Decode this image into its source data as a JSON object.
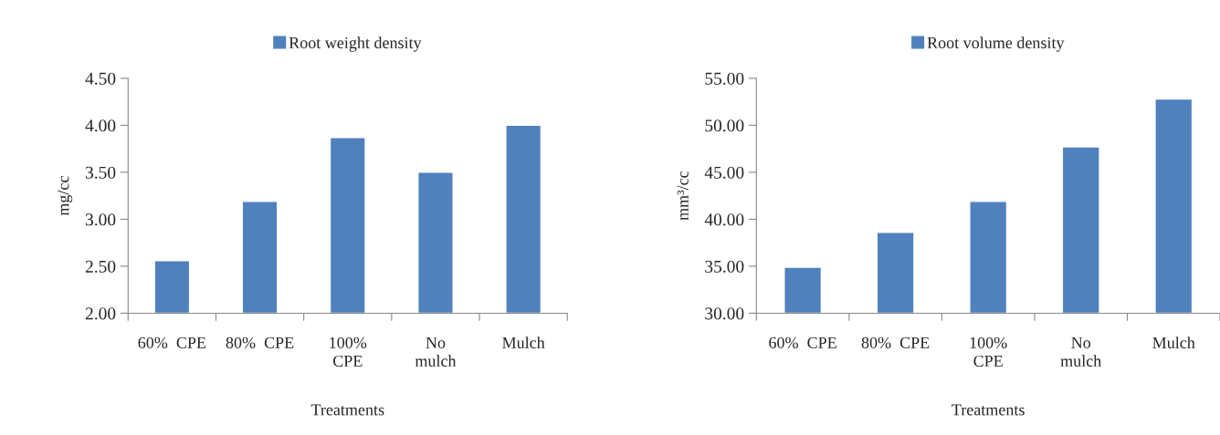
{
  "chart_data": [
    {
      "type": "bar",
      "xlabel": "Treatments",
      "ylabel": "mg/cc",
      "categories": [
        "60%  CPE",
        "80%  CPE",
        "100%\nCPE",
        "No\nmulch",
        "Mulch"
      ],
      "series": [
        {
          "name": "Root weight density",
          "color": "#4f81bd",
          "values": [
            2.56,
            3.19,
            3.87,
            3.5,
            4.0
          ]
        }
      ],
      "ylim": [
        2.0,
        4.5
      ],
      "yticks": [
        {
          "value": 2.0,
          "label": "2.00"
        },
        {
          "value": 2.5,
          "label": "2.50"
        },
        {
          "value": 3.0,
          "label": "3.00"
        },
        {
          "value": 3.5,
          "label": "3.50"
        },
        {
          "value": 4.0,
          "label": "4.00"
        },
        {
          "value": 4.5,
          "label": "4.50"
        }
      ],
      "legend": "top",
      "grid": false
    },
    {
      "type": "bar",
      "xlabel": "Treatments",
      "ylabel": "mm³/cc",
      "categories": [
        "60%  CPE",
        "80%  CPE",
        "100%\nCPE",
        "No\nmulch",
        "Mulch"
      ],
      "series": [
        {
          "name": "Root volume density",
          "color": "#4f81bd",
          "values": [
            34.9,
            38.6,
            41.9,
            47.7,
            52.8
          ]
        }
      ],
      "ylim": [
        30,
        55
      ],
      "yticks": [
        {
          "value": 30,
          "label": "30.00"
        },
        {
          "value": 35,
          "label": "35.00"
        },
        {
          "value": 40,
          "label": "40.00"
        },
        {
          "value": 45,
          "label": "45.00"
        },
        {
          "value": 50,
          "label": "50.00"
        },
        {
          "value": 55,
          "label": "55.00"
        }
      ],
      "legend": "top",
      "grid": false
    }
  ]
}
